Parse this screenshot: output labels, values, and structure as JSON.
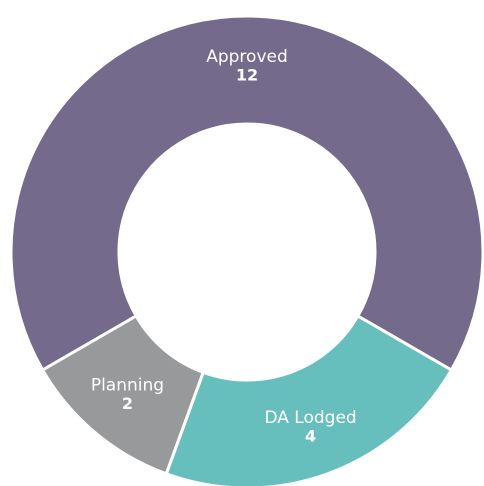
{
  "chart_data": {
    "type": "donut",
    "categories": [
      "Approved",
      "DA Lodged",
      "Planning"
    ],
    "values": [
      12,
      4,
      2
    ],
    "colors": [
      "#736a8c",
      "#67bfbd",
      "#98999b"
    ]
  }
}
